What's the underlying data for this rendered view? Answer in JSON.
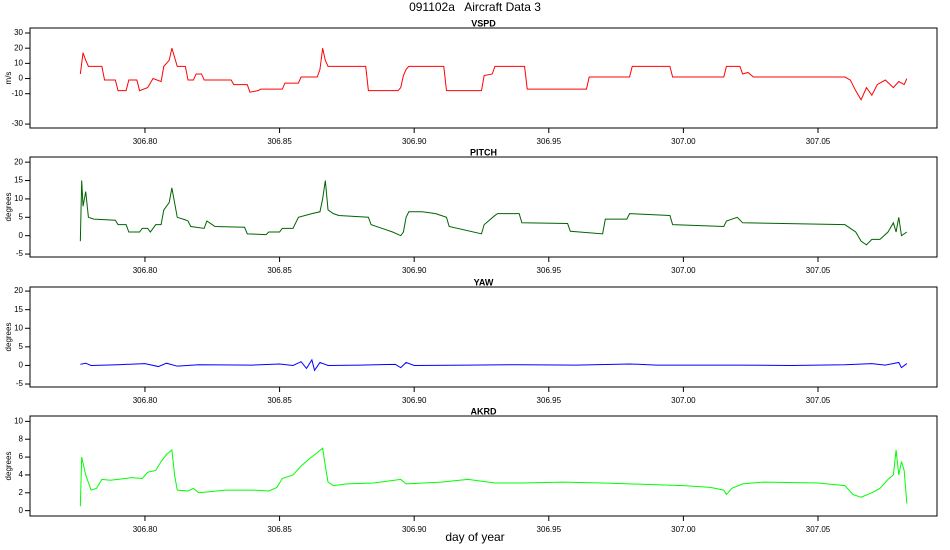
{
  "title": "091102a   Aircraft Data 3",
  "xlabel": "day of year",
  "chart_data": [
    {
      "type": "line",
      "title": "VSPD",
      "ylabel": "m/s",
      "color": "#ff0000",
      "xlim": [
        306.7573,
        307.0942
      ],
      "ylim": [
        -32.6,
        33.3
      ],
      "xticks": [
        {
          "value": 306.8,
          "label": "306.80"
        },
        306.85,
        {
          "value": 306.9,
          "label": "306.90"
        },
        306.95,
        {
          "value": 307.0,
          "label": "307.00"
        },
        307.05
      ],
      "yticks": [
        -30,
        -10,
        0,
        10,
        20,
        30
      ],
      "x": [
        306.776,
        306.777,
        306.778,
        306.779,
        306.784,
        306.785,
        306.789,
        306.79,
        306.793,
        306.794,
        306.797,
        306.798,
        306.801,
        306.803,
        306.806,
        306.807,
        306.809,
        306.81,
        306.811,
        306.812,
        306.815,
        306.816,
        306.818,
        306.819,
        306.821,
        306.822,
        306.832,
        306.833,
        306.838,
        306.839,
        306.842,
        306.843,
        306.851,
        306.852,
        306.857,
        306.858,
        306.864,
        306.865,
        306.866,
        306.867,
        306.868,
        306.882,
        306.883,
        306.894,
        306.895,
        306.896,
        306.897,
        306.898,
        306.911,
        306.912,
        306.925,
        306.926,
        306.929,
        306.93,
        306.941,
        306.942,
        306.964,
        306.965,
        306.98,
        306.981,
        306.995,
        306.996,
        307.015,
        307.016,
        307.021,
        307.022,
        307.024,
        307.026,
        307.06,
        307.062,
        307.064,
        307.066,
        307.068,
        307.07,
        307.072,
        307.075,
        307.078,
        307.08,
        307.082,
        307.083
      ],
      "values": [
        3,
        17,
        12,
        8,
        8,
        -1,
        -1,
        -8,
        -8,
        -1,
        -1,
        -8,
        -6,
        0,
        -2,
        8,
        12,
        20,
        14,
        8,
        8,
        -1,
        -1,
        3,
        3,
        -1,
        -1,
        -4,
        -4,
        -9,
        -8,
        -7,
        -7,
        -3,
        -3,
        1,
        1,
        6,
        20,
        12,
        8,
        8,
        -8,
        -8,
        -6,
        2,
        6,
        8,
        8,
        -8,
        -8,
        2,
        3,
        8,
        8,
        -7,
        -7,
        1,
        1,
        8,
        8,
        1,
        1,
        8,
        8,
        3,
        4,
        1,
        1,
        -1,
        -8,
        -14,
        -6,
        -11,
        -4,
        -1,
        -6,
        -2,
        -4,
        0
      ]
    },
    {
      "type": "line",
      "title": "PITCH",
      "ylabel": "degrees",
      "color": "#006400",
      "xlim": [
        306.7573,
        307.0942
      ],
      "ylim": [
        -5.8,
        21.4
      ],
      "xticks": [
        {
          "value": 306.8,
          "label": "306.80"
        },
        306.85,
        {
          "value": 306.9,
          "label": "306.90"
        },
        306.95,
        {
          "value": 307.0,
          "label": "307.00"
        },
        307.05
      ],
      "yticks": [
        -5,
        0,
        5,
        10,
        15,
        20
      ],
      "x": [
        306.776,
        306.7765,
        306.777,
        306.778,
        306.779,
        306.781,
        306.789,
        306.79,
        306.793,
        306.794,
        306.798,
        306.799,
        306.801,
        306.802,
        306.804,
        306.806,
        306.807,
        306.809,
        306.81,
        306.811,
        306.812,
        306.815,
        306.816,
        306.817,
        306.822,
        306.823,
        306.825,
        306.826,
        306.837,
        306.838,
        306.845,
        306.846,
        306.85,
        306.851,
        306.855,
        306.857,
        306.862,
        306.865,
        306.866,
        306.867,
        306.868,
        306.87,
        306.872,
        306.883,
        306.884,
        306.892,
        306.895,
        306.896,
        306.897,
        306.898,
        306.903,
        306.908,
        306.912,
        306.913,
        306.925,
        306.926,
        306.93,
        306.931,
        306.939,
        306.94,
        306.957,
        306.958,
        306.97,
        306.971,
        306.979,
        306.98,
        306.995,
        306.996,
        307.015,
        307.016,
        307.02,
        307.022,
        307.06,
        307.064,
        307.066,
        307.068,
        307.07,
        307.073,
        307.076,
        307.078,
        307.079,
        307.08,
        307.081,
        307.083
      ],
      "values": [
        -1.5,
        15,
        8,
        12,
        5,
        4.5,
        4.2,
        3,
        3,
        1,
        1,
        2,
        2,
        1,
        3,
        3,
        7,
        9,
        13,
        9,
        5,
        4.3,
        4,
        2.5,
        2,
        4,
        3,
        2.5,
        2.3,
        0.5,
        0.3,
        1,
        1,
        2,
        2,
        5,
        6,
        6.5,
        10,
        15,
        7,
        6,
        5.5,
        5,
        3,
        1,
        0,
        1,
        5,
        6.5,
        6.5,
        6,
        5,
        2.5,
        0.5,
        3,
        5.5,
        6,
        6,
        3.5,
        3.3,
        1.2,
        0.5,
        4.5,
        4.5,
        6,
        5.5,
        3,
        2.5,
        4,
        5,
        3.5,
        3,
        1,
        -1.5,
        -2.5,
        -1,
        -1,
        1,
        3.5,
        1,
        5,
        0,
        1
      ]
    },
    {
      "type": "line",
      "title": "YAW",
      "ylabel": "degrees",
      "color": "#0000ff",
      "xlim": [
        306.7573,
        307.0942
      ],
      "ylim": [
        -5.8,
        21.1
      ],
      "xticks": [
        {
          "value": 306.8,
          "label": "306.80"
        },
        306.85,
        {
          "value": 306.9,
          "label": "306.90"
        },
        306.95,
        {
          "value": 307.0,
          "label": "307.00"
        },
        307.05
      ],
      "yticks": [
        -5,
        0,
        5,
        10,
        15,
        20
      ],
      "x": [
        306.776,
        306.778,
        306.78,
        306.79,
        306.8,
        306.805,
        306.808,
        306.812,
        306.82,
        306.84,
        306.85,
        306.855,
        306.858,
        306.86,
        306.862,
        306.863,
        306.865,
        306.868,
        306.88,
        306.893,
        306.895,
        306.897,
        306.9,
        306.92,
        306.94,
        306.96,
        306.98,
        306.99,
        307.02,
        307.04,
        307.06,
        307.07,
        307.075,
        307.08,
        307.081,
        307.083
      ],
      "values": [
        0.3,
        0.6,
        0,
        0.2,
        0.5,
        -0.3,
        0.6,
        -0.2,
        0.2,
        0.1,
        0.4,
        0,
        1,
        -0.8,
        1.5,
        -1.3,
        0.8,
        0,
        0.1,
        0.3,
        -0.6,
        0.8,
        0,
        0.1,
        0.2,
        0.1,
        0.4,
        0.1,
        0.1,
        0,
        0.2,
        0.5,
        0.1,
        0.8,
        -0.6,
        0.5
      ]
    },
    {
      "type": "line",
      "title": "AKRD",
      "ylabel": "degrees",
      "color": "#00ff00",
      "xlim": [
        306.7573,
        307.0942
      ],
      "ylim": [
        -0.6,
        10.6
      ],
      "xticks": [
        {
          "value": 306.8,
          "label": "306.80"
        },
        306.85,
        {
          "value": 306.9,
          "label": "306.90"
        },
        306.95,
        {
          "value": 307.0,
          "label": "307.00"
        },
        307.05
      ],
      "yticks": [
        0,
        2,
        4,
        6,
        8,
        10
      ],
      "x": [
        306.776,
        306.7765,
        306.778,
        306.78,
        306.782,
        306.784,
        306.787,
        306.79,
        306.795,
        306.799,
        306.801,
        306.804,
        306.806,
        306.808,
        306.81,
        306.811,
        306.812,
        306.816,
        306.818,
        306.82,
        306.83,
        306.84,
        306.846,
        306.849,
        306.851,
        306.855,
        306.858,
        306.861,
        306.864,
        306.866,
        306.867,
        306.868,
        306.87,
        306.875,
        306.885,
        306.895,
        306.897,
        306.91,
        306.92,
        306.93,
        306.94,
        306.955,
        306.97,
        306.98,
        306.99,
        307.0,
        307.01,
        307.015,
        307.016,
        307.018,
        307.022,
        307.03,
        307.05,
        307.06,
        307.063,
        307.066,
        307.07,
        307.073,
        307.076,
        307.078,
        307.079,
        307.08,
        307.081,
        307.082,
        307.083
      ],
      "values": [
        0.5,
        6,
        4,
        2.3,
        2.5,
        3.5,
        3.4,
        3.5,
        3.7,
        3.6,
        4.3,
        4.5,
        5.5,
        6.3,
        6.8,
        4,
        2.3,
        2.2,
        2.5,
        2,
        2.3,
        2.3,
        2.2,
        2.6,
        3.6,
        4,
        5,
        5.8,
        6.5,
        7,
        5,
        3.2,
        2.8,
        3,
        3.1,
        3.5,
        3,
        3.2,
        3.5,
        3.1,
        3.1,
        3.2,
        3.1,
        3,
        2.9,
        2.8,
        2.6,
        2.3,
        1.8,
        2.5,
        3,
        3.2,
        3.1,
        2.8,
        1.8,
        1.5,
        2,
        2.5,
        3.5,
        4,
        6.8,
        4,
        5.5,
        4.5,
        0.8
      ]
    }
  ]
}
